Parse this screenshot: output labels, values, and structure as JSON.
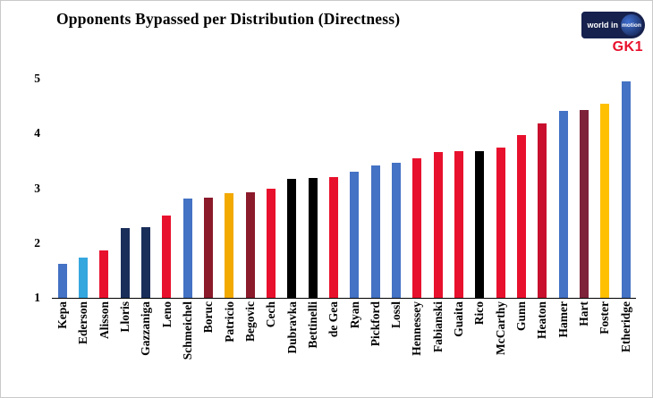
{
  "logo": {
    "world": "world in",
    "motion": "motion",
    "gk": "GK1"
  },
  "chart_data": {
    "type": "bar",
    "title": "Opponents Bypassed per Distribution (Directness)",
    "xlabel": "",
    "ylabel": "",
    "ylim": [
      1,
      5
    ],
    "yticks": [
      1,
      2,
      3,
      4,
      5
    ],
    "grid": false,
    "legend": false,
    "bars": [
      {
        "label": "Kepa",
        "value": 1.62,
        "color": "#4472c4"
      },
      {
        "label": "Ederson",
        "value": 1.73,
        "color": "#35a7df"
      },
      {
        "label": "Alisson",
        "value": 1.87,
        "color": "#e8112d"
      },
      {
        "label": "Lloris",
        "value": 2.27,
        "color": "#1a2e5a"
      },
      {
        "label": "Gazzaniga",
        "value": 2.29,
        "color": "#1a2e5a"
      },
      {
        "label": "Leno",
        "value": 2.51,
        "color": "#e8112d"
      },
      {
        "label": "Schmeichel",
        "value": 2.81,
        "color": "#4472c4"
      },
      {
        "label": "Boruc",
        "value": 2.83,
        "color": "#8b1a2b"
      },
      {
        "label": "Patricio",
        "value": 2.91,
        "color": "#f2a900"
      },
      {
        "label": "Begovic",
        "value": 2.92,
        "color": "#8b1a2b"
      },
      {
        "label": "Cech",
        "value": 3.0,
        "color": "#e8112d"
      },
      {
        "label": "Dubravka",
        "value": 3.17,
        "color": "#000000"
      },
      {
        "label": "Bettinelli",
        "value": 3.18,
        "color": "#000000"
      },
      {
        "label": "de Gea",
        "value": 3.2,
        "color": "#e8112d"
      },
      {
        "label": "Ryan",
        "value": 3.3,
        "color": "#4472c4"
      },
      {
        "label": "Pickford",
        "value": 3.42,
        "color": "#4472c4"
      },
      {
        "label": "Lossl",
        "value": 3.47,
        "color": "#4472c4"
      },
      {
        "label": "Hennessey",
        "value": 3.54,
        "color": "#e8112d"
      },
      {
        "label": "Fabianski",
        "value": 3.66,
        "color": "#e8112d"
      },
      {
        "label": "Guaita",
        "value": 3.67,
        "color": "#e8112d"
      },
      {
        "label": "Rico",
        "value": 3.68,
        "color": "#000000"
      },
      {
        "label": "McCarthy",
        "value": 3.75,
        "color": "#e8112d"
      },
      {
        "label": "Gunn",
        "value": 3.97,
        "color": "#e8112d"
      },
      {
        "label": "Heaton",
        "value": 4.18,
        "color": "#c8102e"
      },
      {
        "label": "Hamer",
        "value": 4.42,
        "color": "#4472c4"
      },
      {
        "label": "Hart",
        "value": 4.43,
        "color": "#7d2239"
      },
      {
        "label": "Foster",
        "value": 4.55,
        "color": "#ffc000"
      },
      {
        "label": "Etheridge",
        "value": 4.95,
        "color": "#4472c4"
      }
    ]
  }
}
